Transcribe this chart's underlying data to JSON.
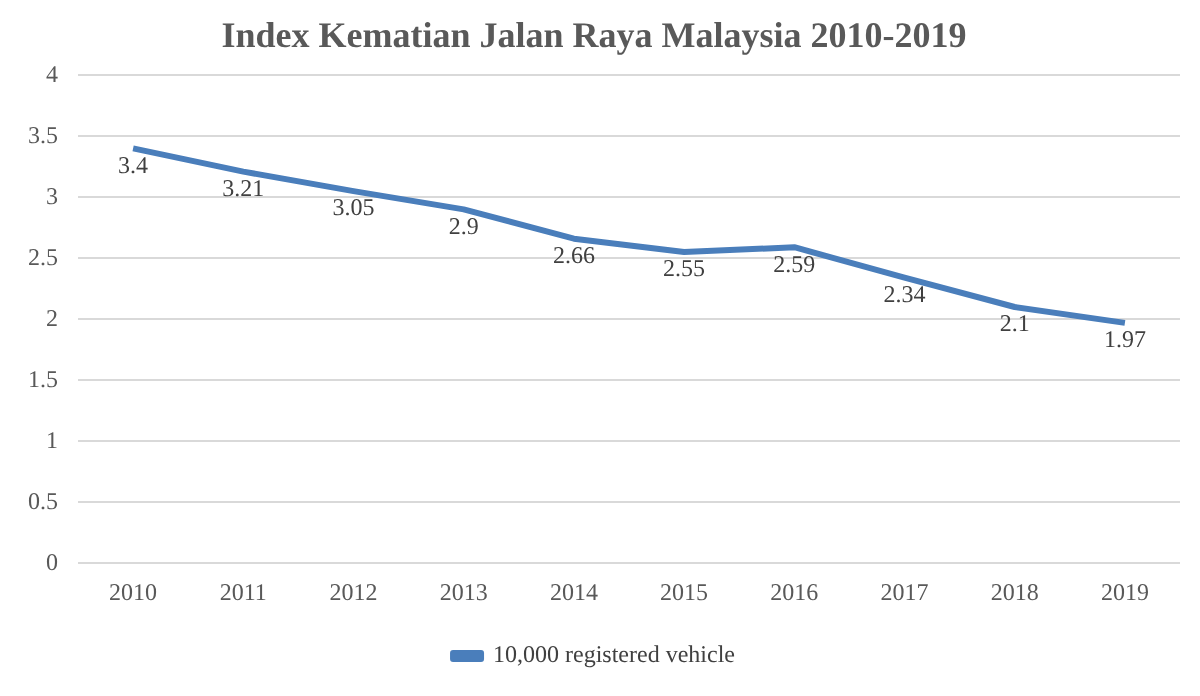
{
  "chart_data": {
    "type": "line",
    "title": "Index Kematian Jalan Raya Malaysia 2010-2019",
    "categories": [
      "2010",
      "2011",
      "2012",
      "2013",
      "2014",
      "2015",
      "2016",
      "2017",
      "2018",
      "2019"
    ],
    "series": [
      {
        "name": "10,000 registered vehicle",
        "color": "#4a7ebb",
        "values": [
          3.4,
          3.21,
          3.05,
          2.9,
          2.66,
          2.55,
          2.59,
          2.34,
          2.1,
          1.97
        ]
      }
    ],
    "data_labels": true,
    "ylim": [
      0,
      4
    ],
    "yticks": [
      0,
      0.5,
      1,
      1.5,
      2,
      2.5,
      3,
      3.5,
      4
    ],
    "grid": "y",
    "legend": "bottom",
    "marker": "none",
    "line_style": "solid"
  }
}
